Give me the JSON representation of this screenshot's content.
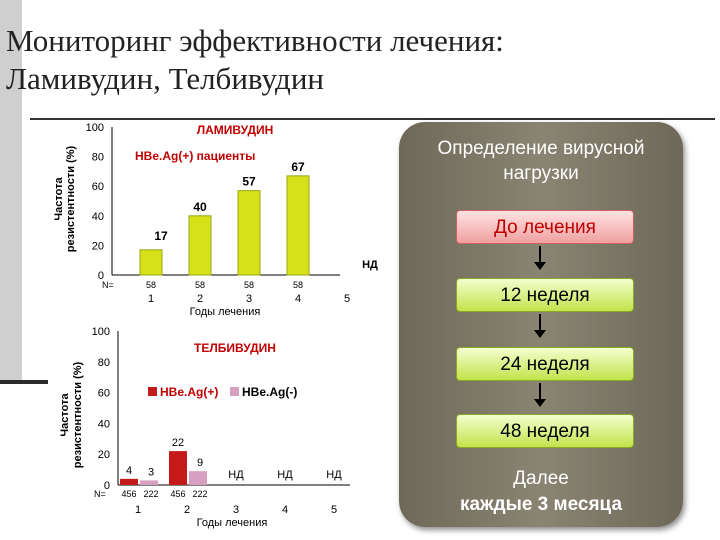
{
  "slide": {
    "title": "Мониторинг эффективности лечения:\nЛамивудин, Телбивудин"
  },
  "panel": {
    "heading": "Определение вирусной нагрузки",
    "steps": [
      {
        "label": "До лечения",
        "style": "red"
      },
      {
        "label": "12 неделя",
        "style": "green"
      },
      {
        "label": "24 неделя",
        "style": "green"
      },
      {
        "label": "48 неделя",
        "style": "green"
      }
    ],
    "footer_line1": "Далее",
    "footer_line2": "каждые 3 месяца"
  },
  "chart_data": [
    {
      "type": "bar",
      "title": "ЛАМИВУДИН",
      "subtitle": "HBe.Ag(+) пациенты",
      "ylabel_line1": "Частота",
      "ylabel_line2": "резистентности  (%)",
      "xlabel": "Годы лечения",
      "ylim": [
        0,
        100
      ],
      "yticks": [
        0,
        20,
        40,
        60,
        80,
        100
      ],
      "categories": [
        "1",
        "2",
        "3",
        "4",
        "5"
      ],
      "values": [
        17,
        40,
        57,
        67,
        null
      ],
      "value_labels": [
        "17",
        "40",
        "57",
        "67",
        "НД"
      ],
      "n_prefix": "N=",
      "n_values": [
        "58",
        "58",
        "58",
        "58",
        ""
      ],
      "colors": {
        "bar": "#d7e11a",
        "bar_edge": "#9aa512"
      }
    },
    {
      "type": "bar",
      "title": "ТЕЛБИВУДИН",
      "ylabel_line1": "Частота",
      "ylabel_line2": "резистентности (%)",
      "xlabel": "Годы лечения",
      "ylim": [
        0,
        100
      ],
      "yticks": [
        0,
        20,
        40,
        60,
        80,
        100
      ],
      "categories": [
        "1",
        "2",
        "3",
        "4",
        "5"
      ],
      "series": [
        {
          "name": "HBe.Ag(+)",
          "color": "#c41a1a",
          "values": [
            4,
            22,
            null,
            null,
            null
          ]
        },
        {
          "name": "HBe.Ag(-)",
          "color": "#d8a0c0",
          "values": [
            3,
            9,
            null,
            null,
            null
          ]
        }
      ],
      "nd_labels": [
        "",
        "",
        "НД",
        "НД",
        "НД"
      ],
      "n_prefix": "N=",
      "n_values": [
        [
          "456",
          "222"
        ],
        [
          "456",
          "222"
        ],
        [
          "",
          ""
        ],
        [
          "",
          ""
        ],
        [
          "",
          ""
        ]
      ]
    }
  ]
}
